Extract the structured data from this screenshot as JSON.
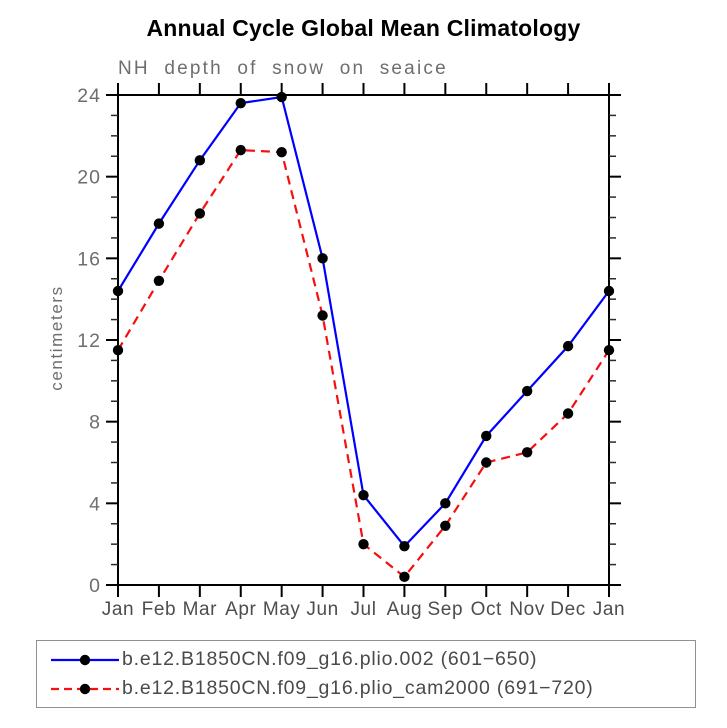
{
  "title": "Annual Cycle Global Mean Climatology",
  "subtitle": "NH depth of snow on seaice",
  "chart_data": {
    "type": "line",
    "categories": [
      "Jan",
      "Feb",
      "Mar",
      "Apr",
      "May",
      "Jun",
      "Jul",
      "Aug",
      "Sep",
      "Oct",
      "Nov",
      "Dec",
      "Jan"
    ],
    "xlabel": "",
    "ylabel": "centimeters",
    "ylim": [
      0,
      24
    ],
    "yticks": [
      0,
      4,
      8,
      12,
      16,
      20,
      24
    ],
    "ytick_minor_step": 1,
    "grid": false,
    "legend_position": "bottom",
    "frame_color": "#000000",
    "series": [
      {
        "name": "b.e12.B1850CN.f09_g16.plio.002 (601−650)",
        "color": "#0000ff",
        "line_style": "solid",
        "marker": "circle",
        "marker_color": "#000000",
        "values": [
          14.4,
          17.7,
          20.8,
          23.6,
          23.9,
          16.0,
          4.4,
          1.9,
          4.0,
          7.3,
          9.5,
          11.7,
          14.4
        ]
      },
      {
        "name": "b.e12.B1850CN.f09_g16.plio_cam2000 (691−720)",
        "color": "#f50f0f",
        "line_style": "dashed",
        "marker": "circle",
        "marker_color": "#000000",
        "values": [
          11.5,
          14.9,
          18.2,
          21.3,
          21.2,
          13.2,
          2.0,
          0.4,
          2.9,
          6.0,
          6.5,
          8.4,
          11.5
        ]
      }
    ]
  }
}
